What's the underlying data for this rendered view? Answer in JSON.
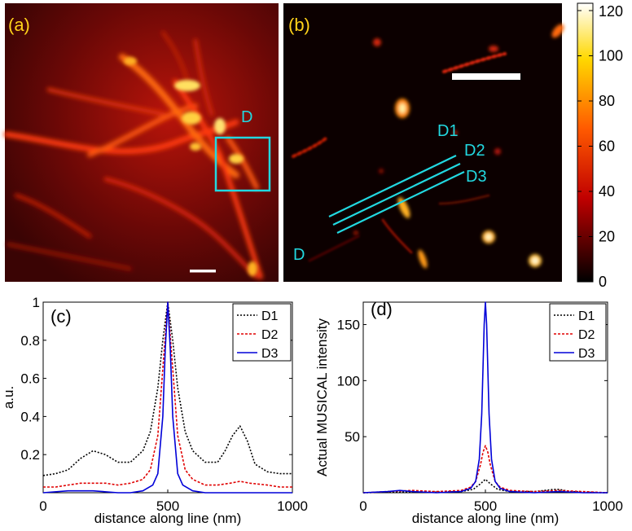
{
  "panels": {
    "a": {
      "label": "(a)",
      "roi_label": "D"
    },
    "b": {
      "label": "(b)",
      "corner_label": "D",
      "line_labels": [
        "D1",
        "D2",
        "D3"
      ]
    }
  },
  "colorbar": {
    "ticks": [
      0,
      20,
      40,
      60,
      80,
      100,
      120
    ]
  },
  "colors": {
    "panel_label": "#ffd21a",
    "cyan": "#22d8e0",
    "D1": "#000000",
    "D2": "#e00000",
    "D3": "#0000d8"
  },
  "chart_data": [
    {
      "type": "line",
      "panel_label": "(c)",
      "xlabel": "distance along line (nm)",
      "ylabel": "a.u.",
      "xlim": [
        0,
        1000
      ],
      "ylim": [
        0,
        1
      ],
      "xticks": [
        0,
        500,
        1000
      ],
      "yticks": [
        0.2,
        0.4,
        0.6,
        0.8,
        1
      ],
      "ytick_labels": [
        "0.2",
        "0.4",
        "0.6",
        "0.8",
        "1"
      ],
      "legend": "top-right",
      "series": [
        {
          "name": "D1",
          "style": "dotted",
          "x": [
            0,
            50,
            100,
            150,
            200,
            250,
            300,
            350,
            400,
            430,
            460,
            480,
            500,
            520,
            540,
            570,
            600,
            650,
            700,
            730,
            760,
            790,
            820,
            850,
            900,
            950,
            1000
          ],
          "y": [
            0.09,
            0.1,
            0.12,
            0.18,
            0.22,
            0.2,
            0.16,
            0.16,
            0.22,
            0.32,
            0.55,
            0.8,
            1.0,
            0.8,
            0.55,
            0.32,
            0.22,
            0.16,
            0.16,
            0.22,
            0.3,
            0.35,
            0.27,
            0.15,
            0.11,
            0.1,
            0.1
          ]
        },
        {
          "name": "D2",
          "style": "dashed",
          "x": [
            0,
            50,
            100,
            150,
            200,
            250,
            300,
            350,
            400,
            430,
            460,
            480,
            500,
            520,
            540,
            570,
            600,
            650,
            700,
            750,
            790,
            830,
            900,
            950,
            1000
          ],
          "y": [
            0.03,
            0.03,
            0.04,
            0.05,
            0.05,
            0.05,
            0.04,
            0.05,
            0.07,
            0.12,
            0.3,
            0.65,
            1.0,
            0.65,
            0.3,
            0.12,
            0.07,
            0.04,
            0.04,
            0.05,
            0.06,
            0.05,
            0.04,
            0.03,
            0.03
          ]
        },
        {
          "name": "D3",
          "style": "solid",
          "x": [
            0,
            100,
            150,
            200,
            300,
            350,
            400,
            440,
            460,
            480,
            490,
            500,
            510,
            520,
            540,
            560,
            600,
            650,
            700,
            800,
            900,
            1000
          ],
          "y": [
            0.0,
            0.01,
            0.01,
            0.01,
            0.0,
            0.0,
            0.01,
            0.04,
            0.1,
            0.4,
            0.75,
            1.0,
            0.75,
            0.4,
            0.1,
            0.04,
            0.01,
            0.0,
            0.0,
            0.0,
            0.0,
            0.0
          ]
        }
      ]
    },
    {
      "type": "line",
      "panel_label": "(d)",
      "xlabel": "distance along line (nm)",
      "ylabel": "Actual MUSICAL intensity",
      "xlim": [
        0,
        1000
      ],
      "ylim": [
        0,
        170
      ],
      "xticks": [
        0,
        500,
        1000
      ],
      "yticks": [
        50,
        100,
        150
      ],
      "ytick_labels": [
        "50",
        "100",
        "150"
      ],
      "legend": "top-right",
      "series": [
        {
          "name": "D1",
          "style": "dotted",
          "x": [
            0,
            100,
            200,
            300,
            400,
            450,
            480,
            500,
            520,
            550,
            600,
            700,
            780,
            800,
            850,
            900,
            1000
          ],
          "y": [
            0,
            0.5,
            0.5,
            0.5,
            1,
            3,
            8,
            12,
            8,
            3,
            1,
            1,
            3,
            3,
            1,
            0.5,
            0
          ]
        },
        {
          "name": "D2",
          "style": "dashed",
          "x": [
            0,
            100,
            200,
            300,
            400,
            440,
            460,
            480,
            490,
            500,
            510,
            520,
            540,
            560,
            600,
            700,
            800,
            900,
            1000
          ],
          "y": [
            0,
            1,
            2,
            1,
            2,
            5,
            10,
            25,
            36,
            42,
            36,
            25,
            10,
            5,
            2,
            1,
            2,
            1,
            0
          ]
        },
        {
          "name": "D3",
          "style": "solid",
          "x": [
            0,
            100,
            150,
            200,
            300,
            400,
            440,
            460,
            475,
            485,
            490,
            495,
            500,
            505,
            510,
            515,
            525,
            540,
            560,
            600,
            700,
            800,
            900,
            1000
          ],
          "y": [
            0,
            1,
            2,
            1,
            0,
            1,
            4,
            10,
            30,
            70,
            110,
            150,
            170,
            150,
            110,
            70,
            30,
            10,
            4,
            1,
            0,
            1,
            0,
            0
          ]
        }
      ]
    }
  ]
}
